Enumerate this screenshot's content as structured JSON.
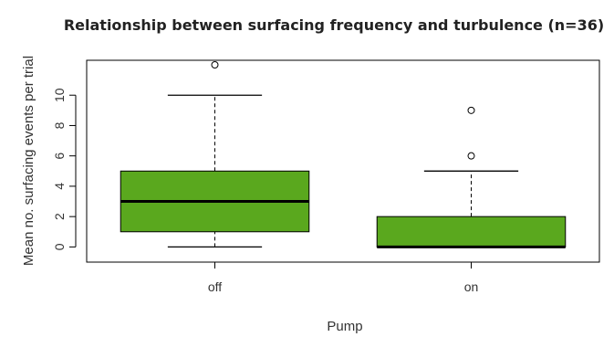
{
  "chart_data": {
    "type": "boxplot",
    "title": "Relationship between surfacing frequency and turbulence (n=36)",
    "xlabel": "Pump",
    "ylabel": "Mean no. surfacing events per trial",
    "categories": [
      "off",
      "on"
    ],
    "ylim": [
      -1,
      12.3
    ],
    "yticks": [
      0,
      2,
      4,
      6,
      8,
      10
    ],
    "y_tick_labels": [
      "0",
      "2",
      "4",
      "6",
      "8",
      "10"
    ],
    "grid": false,
    "legend": "none",
    "box_color": "#5aa81e",
    "boxes": [
      {
        "category": "off",
        "whisker_low": 0,
        "q1": 1,
        "median": 3,
        "q3": 5,
        "whisker_high": 10,
        "outliers": [
          12
        ]
      },
      {
        "category": "on",
        "whisker_low": 0,
        "q1": 0,
        "median": 0,
        "q3": 2,
        "whisker_high": 5,
        "outliers": [
          6,
          9
        ]
      }
    ]
  }
}
